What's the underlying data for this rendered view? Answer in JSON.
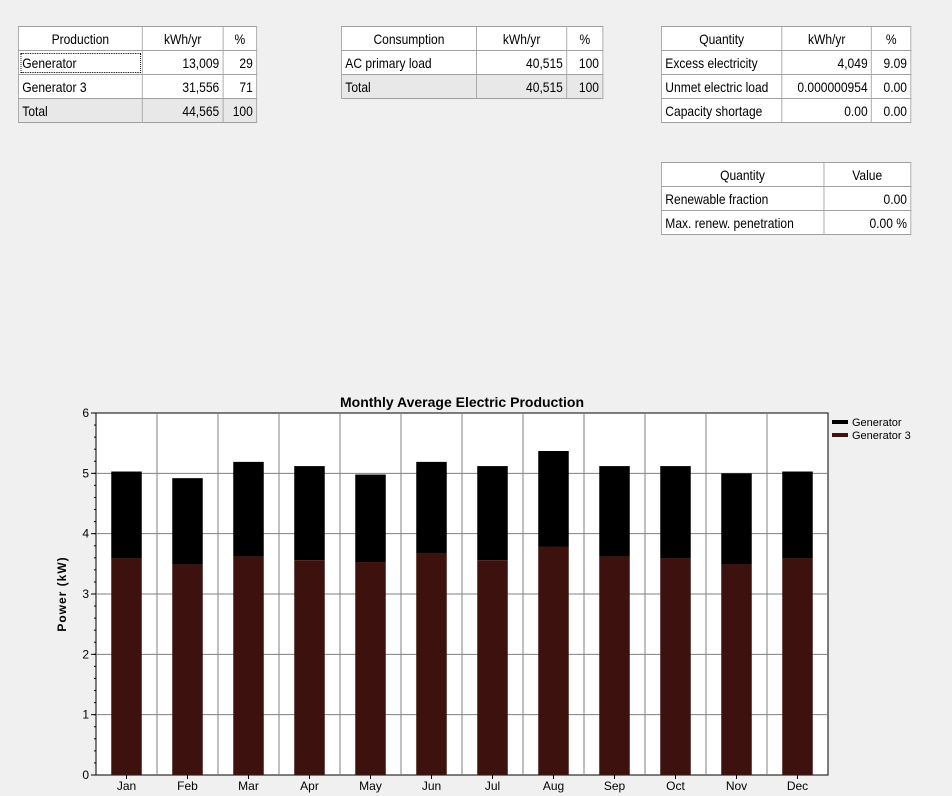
{
  "production": {
    "headers": [
      "Production",
      "kWh/yr",
      "%"
    ],
    "rows": [
      [
        "Generator",
        "13,009",
        "29"
      ],
      [
        "Generator 3",
        "31,556",
        "71"
      ]
    ],
    "total": [
      "Total",
      "44,565",
      "100"
    ]
  },
  "consumption": {
    "headers": [
      "Consumption",
      "kWh/yr",
      "%"
    ],
    "rows": [
      [
        "AC primary load",
        "40,515",
        "100"
      ]
    ],
    "total": [
      "Total",
      "40,515",
      "100"
    ]
  },
  "quantity": {
    "headers": [
      "Quantity",
      "kWh/yr",
      "%"
    ],
    "rows": [
      [
        "Excess electricity",
        "4,049",
        "9.09"
      ],
      [
        "Unmet electric load",
        "0.000000954",
        "0.00"
      ],
      [
        "Capacity shortage",
        "0.00",
        "0.00"
      ]
    ]
  },
  "values": {
    "headers": [
      "Quantity",
      "Value"
    ],
    "rows": [
      [
        "Renewable fraction",
        "0.00"
      ],
      [
        "Max. renew. penetration",
        "0.00 %"
      ]
    ]
  },
  "chart_data": {
    "type": "bar",
    "stacked": true,
    "title": "Monthly Average Electric Production",
    "xlabel": "",
    "ylabel": "Power (kW)",
    "ylim": [
      0,
      6
    ],
    "yticks": [
      "0",
      "1",
      "2",
      "3",
      "4",
      "5",
      "6"
    ],
    "categories": [
      "Jan",
      "Feb",
      "Mar",
      "Apr",
      "May",
      "Jun",
      "Jul",
      "Aug",
      "Sep",
      "Oct",
      "Nov",
      "Dec"
    ],
    "series": [
      {
        "name": "Generator 3",
        "color": "#3d120e",
        "values": [
          3.59,
          3.49,
          3.62,
          3.56,
          3.53,
          3.68,
          3.56,
          3.78,
          3.62,
          3.59,
          3.49,
          3.59
        ]
      },
      {
        "name": "Generator",
        "color": "#000000",
        "values": [
          1.44,
          1.43,
          1.57,
          1.56,
          1.45,
          1.51,
          1.56,
          1.59,
          1.5,
          1.53,
          1.51,
          1.44
        ]
      }
    ],
    "legend": {
      "placement": "top-right",
      "items": [
        {
          "name": "Generator",
          "color": "#000000"
        },
        {
          "name": "Generator 3",
          "color": "#3d120e"
        }
      ]
    },
    "grid": true
  }
}
